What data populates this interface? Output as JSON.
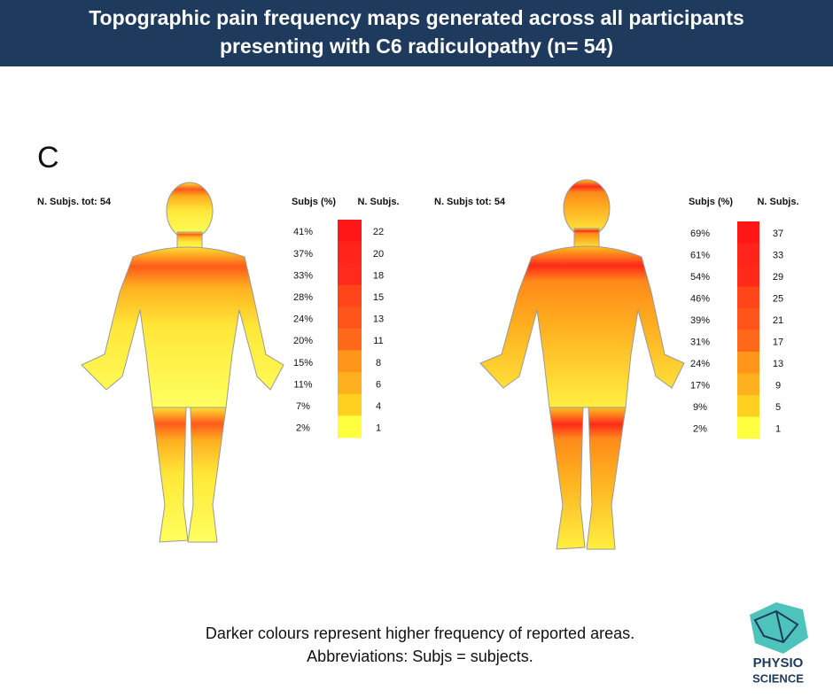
{
  "header": {
    "title_lines": [
      "Topographic pain frequency maps generated across all participants",
      "presenting with C6 radiculopathy (n= 54)"
    ]
  },
  "panel_label": "C",
  "panels": [
    {
      "total_label": "N. Subjs. tot: 54",
      "pct_header": "Subjs (%)",
      "count_header": "N. Subjs.",
      "rows": [
        {
          "percent": "41%",
          "count": "22"
        },
        {
          "percent": "37%",
          "count": "20"
        },
        {
          "percent": "33%",
          "count": "18"
        },
        {
          "percent": "28%",
          "count": "15"
        },
        {
          "percent": "24%",
          "count": "13"
        },
        {
          "percent": "20%",
          "count": "11"
        },
        {
          "percent": "15%",
          "count": "8"
        },
        {
          "percent": "11%",
          "count": "6"
        },
        {
          "percent": "7%",
          "count": "4"
        },
        {
          "percent": "2%",
          "count": "1"
        }
      ],
      "colors": [
        "#ff1616",
        "#ff2419",
        "#ff2a1a",
        "#ff461a",
        "#ff551a",
        "#ff6a1a",
        "#ff961a",
        "#ffb01e",
        "#ffd020",
        "#ffff40"
      ]
    },
    {
      "total_label": "N. Subjs tot: 54",
      "pct_header": "Subjs (%)",
      "count_header": "N. Subjs.",
      "rows": [
        {
          "percent": "69%",
          "count": "37"
        },
        {
          "percent": "61%",
          "count": "33"
        },
        {
          "percent": "54%",
          "count": "29"
        },
        {
          "percent": "46%",
          "count": "25"
        },
        {
          "percent": "39%",
          "count": "21"
        },
        {
          "percent": "31%",
          "count": "17"
        },
        {
          "percent": "24%",
          "count": "13"
        },
        {
          "percent": "17%",
          "count": "9"
        },
        {
          "percent": "9%",
          "count": "5"
        },
        {
          "percent": "2%",
          "count": "1"
        }
      ],
      "colors": [
        "#ff1616",
        "#ff2419",
        "#ff2a1a",
        "#ff461a",
        "#ff551a",
        "#ff6a1a",
        "#ff961a",
        "#ffb01e",
        "#ffd020",
        "#ffff40"
      ]
    }
  ],
  "footer": {
    "lines": [
      "Darker colours represent higher frequency of reported areas.",
      "Abbreviations: Subjs = subjects."
    ]
  },
  "logo": {
    "top": "PHYSIO",
    "bottom": "SCIENCE"
  }
}
